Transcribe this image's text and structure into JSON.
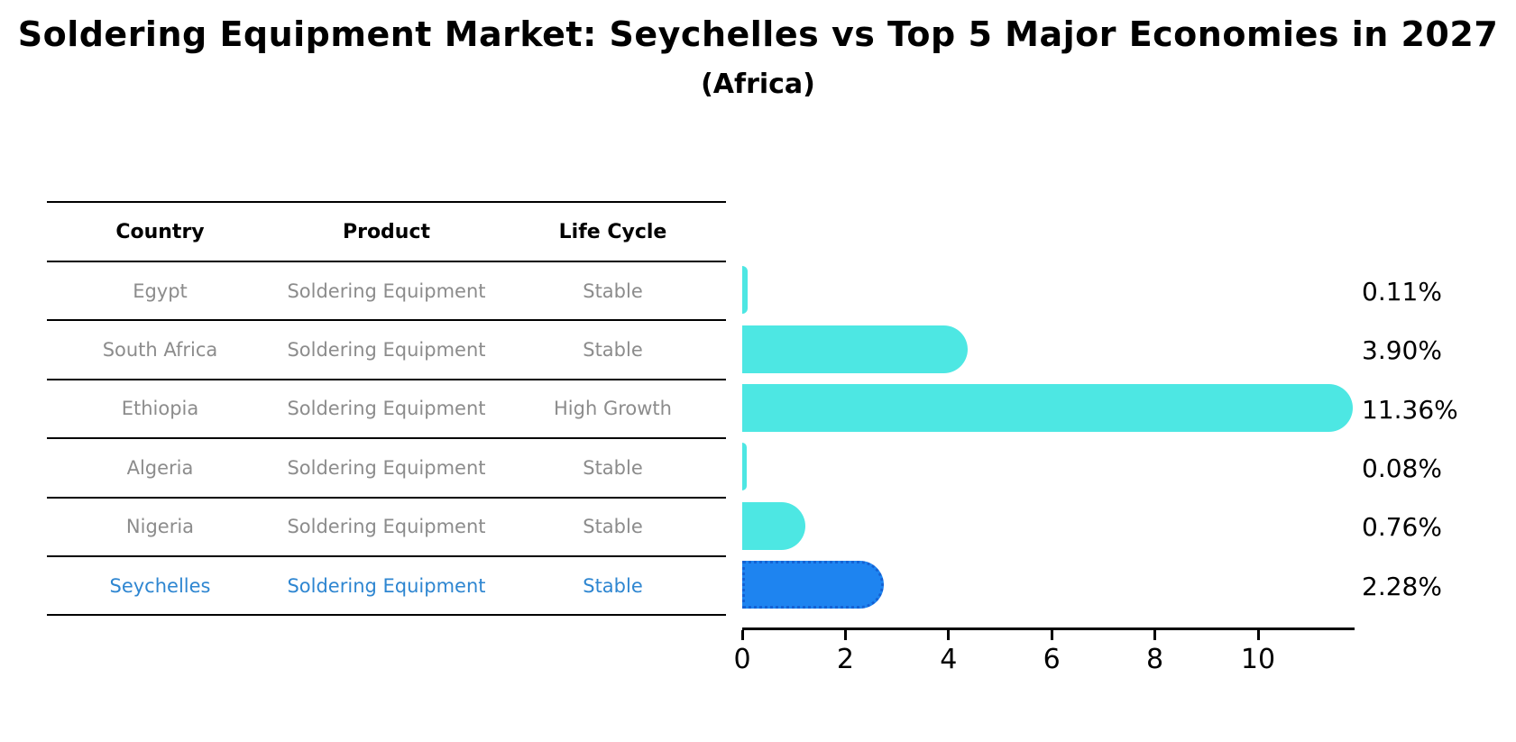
{
  "title": "Soldering Equipment Market: Seychelles vs Top 5 Major Economies in 2027",
  "subtitle": "(Africa)",
  "table": {
    "headers": [
      "Country",
      "Product",
      "Life Cycle"
    ],
    "rows": [
      {
        "country": "Egypt",
        "product": "Soldering Equipment",
        "life_cycle": "Stable",
        "highlight": false
      },
      {
        "country": "South Africa",
        "product": "Soldering Equipment",
        "life_cycle": "Stable",
        "highlight": false
      },
      {
        "country": "Ethiopia",
        "product": "Soldering Equipment",
        "life_cycle": "High Growth",
        "highlight": false
      },
      {
        "country": "Algeria",
        "product": "Soldering Equipment",
        "life_cycle": "Stable",
        "highlight": false
      },
      {
        "country": "Nigeria",
        "product": "Soldering Equipment",
        "life_cycle": "Stable",
        "highlight": false
      },
      {
        "country": "Seychelles",
        "product": "Soldering Equipment",
        "life_cycle": "Stable",
        "highlight": true
      }
    ]
  },
  "chart_data": {
    "type": "bar",
    "orientation": "horizontal",
    "title": "Soldering Equipment Market: Seychelles vs Top 5 Major Economies in 2027",
    "subtitle": "(Africa)",
    "categories": [
      "Egypt",
      "South Africa",
      "Ethiopia",
      "Algeria",
      "Nigeria",
      "Seychelles"
    ],
    "values": [
      0.11,
      3.9,
      11.36,
      0.08,
      0.76,
      2.28
    ],
    "value_labels": [
      "0.11%",
      "3.90%",
      "11.36%",
      "0.08%",
      "0.76%",
      "2.28%"
    ],
    "xlabel": "",
    "ylabel": "",
    "xlim": [
      0,
      11.85
    ],
    "xticks": [
      0,
      2,
      4,
      6,
      8,
      10
    ],
    "grid": false,
    "legend": "none",
    "bar_color": "#4de7e3",
    "highlight_color": "#1e84f0",
    "highlight_border_color": "#1462d4",
    "highlight_index": 5
  },
  "colors": {
    "background": "#ffffff",
    "table_line": "#000000",
    "table_text": "#8c8c8c",
    "highlight_text": "#2e86d1",
    "axis": "#000000"
  }
}
